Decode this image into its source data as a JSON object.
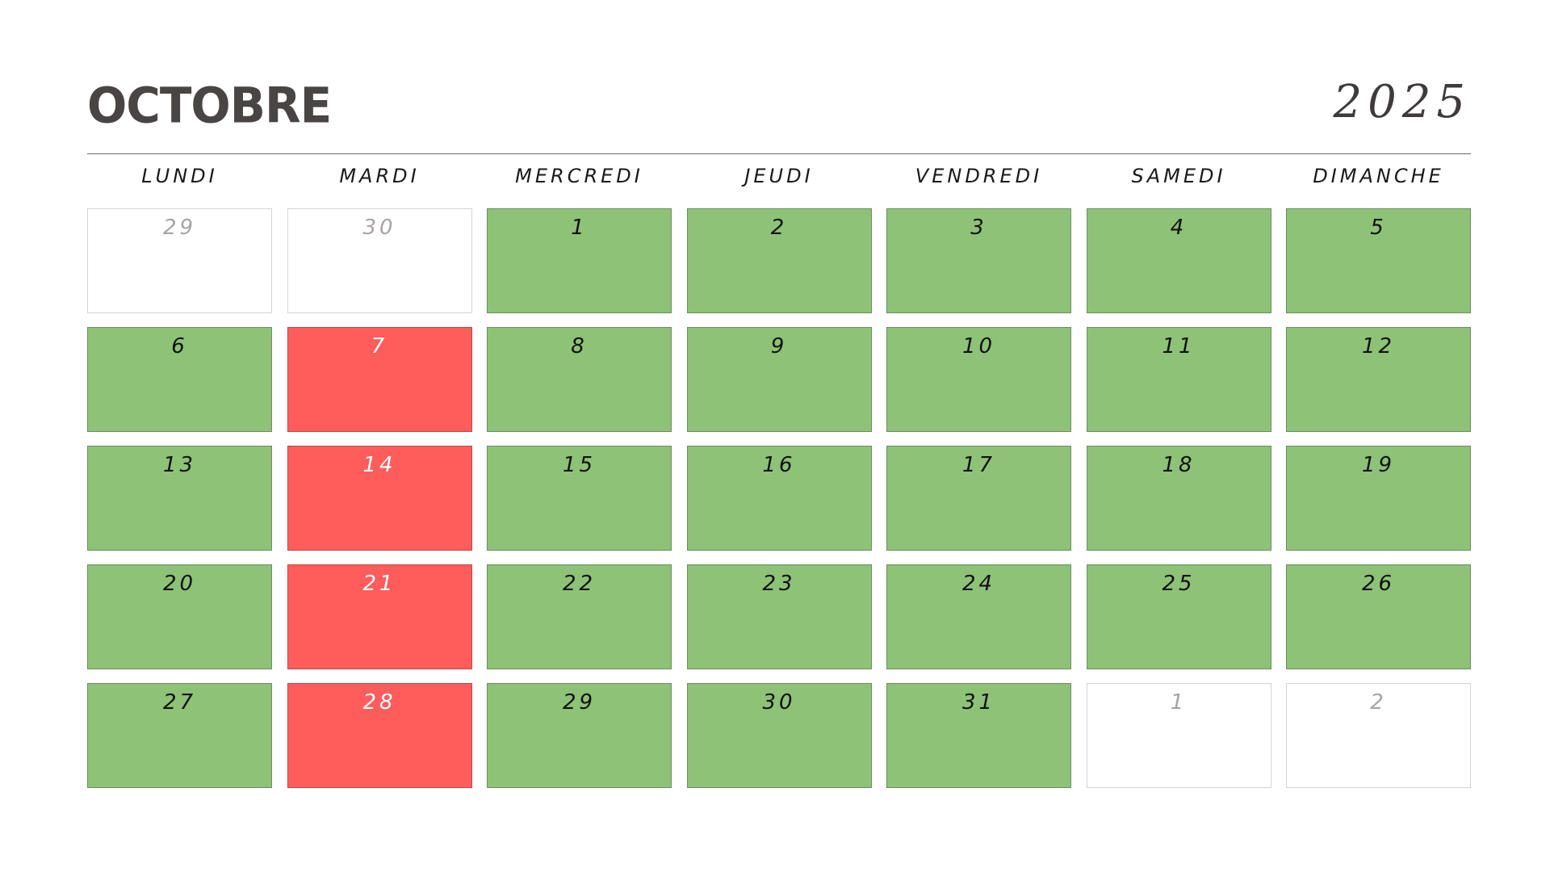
{
  "header": {
    "month": "OCTOBRE",
    "year": "2025"
  },
  "weekdays": [
    "LUNDI",
    "MARDI",
    "MERCREDI",
    "JEUDI",
    "VENDREDI",
    "SAMEDI",
    "DIMANCHE"
  ],
  "colors": {
    "available": "#8dc277",
    "busy": "#ff5c5c",
    "outside": "#ffffff"
  },
  "days": [
    {
      "label": "29",
      "status": "outside"
    },
    {
      "label": "30",
      "status": "outside"
    },
    {
      "label": "1",
      "status": "available"
    },
    {
      "label": "2",
      "status": "available"
    },
    {
      "label": "3",
      "status": "available"
    },
    {
      "label": "4",
      "status": "available"
    },
    {
      "label": "5",
      "status": "available"
    },
    {
      "label": "6",
      "status": "available"
    },
    {
      "label": "7",
      "status": "busy"
    },
    {
      "label": "8",
      "status": "available"
    },
    {
      "label": "9",
      "status": "available"
    },
    {
      "label": "10",
      "status": "available"
    },
    {
      "label": "11",
      "status": "available"
    },
    {
      "label": "12",
      "status": "available"
    },
    {
      "label": "13",
      "status": "available"
    },
    {
      "label": "14",
      "status": "busy"
    },
    {
      "label": "15",
      "status": "available"
    },
    {
      "label": "16",
      "status": "available"
    },
    {
      "label": "17",
      "status": "available"
    },
    {
      "label": "18",
      "status": "available"
    },
    {
      "label": "19",
      "status": "available"
    },
    {
      "label": "20",
      "status": "available"
    },
    {
      "label": "21",
      "status": "busy"
    },
    {
      "label": "22",
      "status": "available"
    },
    {
      "label": "23",
      "status": "available"
    },
    {
      "label": "24",
      "status": "available"
    },
    {
      "label": "25",
      "status": "available"
    },
    {
      "label": "26",
      "status": "available"
    },
    {
      "label": "27",
      "status": "available"
    },
    {
      "label": "28",
      "status": "busy"
    },
    {
      "label": "29",
      "status": "available"
    },
    {
      "label": "30",
      "status": "available"
    },
    {
      "label": "31",
      "status": "available"
    },
    {
      "label": "1",
      "status": "outside"
    },
    {
      "label": "2",
      "status": "outside"
    }
  ]
}
